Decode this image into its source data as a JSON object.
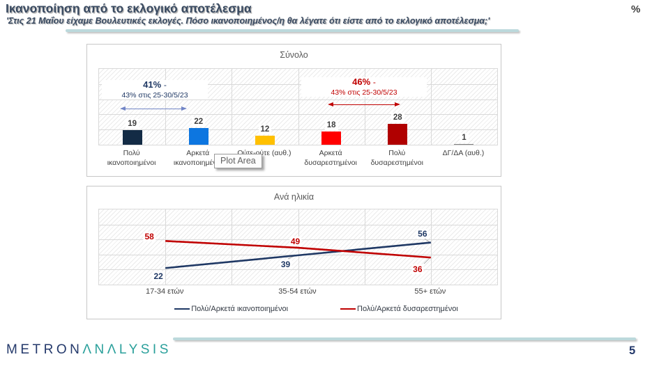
{
  "page": {
    "title": "Ικανοποίηση από το εκλογικό αποτέλεσμα",
    "subtitle": "'Στις 21 Μαΐου είχαμε Βουλευτικές εκλογές. Πόσο ικανοποιημένος/η θα λέγατε ότι είστε από το εκλογικό αποτέλεσμα;'",
    "unit_label": "%",
    "page_number": "5",
    "logo_part1": "METRON",
    "logo_part2": "ΛΝΛLYSIS"
  },
  "tooltip": {
    "label": "Plot Area"
  },
  "colors": {
    "title": "#394A61",
    "rule": "#BCD9DC",
    "logo_navy": "#24396B",
    "logo_teal": "#2AA09B",
    "text_gray": "#3F3F3F",
    "grid": "#D9D9D9"
  },
  "chart_data": [
    {
      "type": "bar",
      "title": "Σύνολο",
      "categories": [
        "Πολύ ικανοποιημένοι",
        "Αρκετά ικανοποιημένοι",
        "Ούτε-ούτε (αυθ.)",
        "Αρκετά δυσαρεστημένοι",
        "Πολύ δυσαρεστημένοι",
        "ΔΓ/ΔΑ (αυθ.)"
      ],
      "values": [
        19,
        22,
        12,
        18,
        28,
        1
      ],
      "bar_colors": [
        "#132B45",
        "#0D76E0",
        "#FFC000",
        "#FF0000",
        "#B00000",
        "#808080"
      ],
      "ylim": [
        0,
        100
      ],
      "grid": "on",
      "annotations": [
        {
          "pct": "41%",
          "suffix": "-",
          "prev": "43% στις 25-30/5/23",
          "color": "#1F3864",
          "arrow_color": "#7185C6",
          "spans_categories": [
            0,
            1
          ]
        },
        {
          "pct": "46%",
          "suffix": "-",
          "prev": "43% στις 25-30/5/23",
          "color": "#C00000",
          "arrow_color": "#C00000",
          "spans_categories": [
            3,
            4
          ]
        }
      ]
    },
    {
      "type": "line",
      "title": "Ανά ηλικία",
      "categories": [
        "17-34 ετών",
        "35-54 ετών",
        "55+ ετών"
      ],
      "series": [
        {
          "name": "Πολύ/Αρκετά ικανοποιημένοι",
          "color": "#1F3864",
          "values": [
            22,
            39,
            56
          ]
        },
        {
          "name": "Πολύ/Αρκετά δυσαρεστημένοι",
          "color": "#C00000",
          "values": [
            58,
            49,
            36
          ]
        }
      ],
      "ylim": [
        0,
        100
      ],
      "grid": "on",
      "legend_position": "bottom"
    }
  ]
}
